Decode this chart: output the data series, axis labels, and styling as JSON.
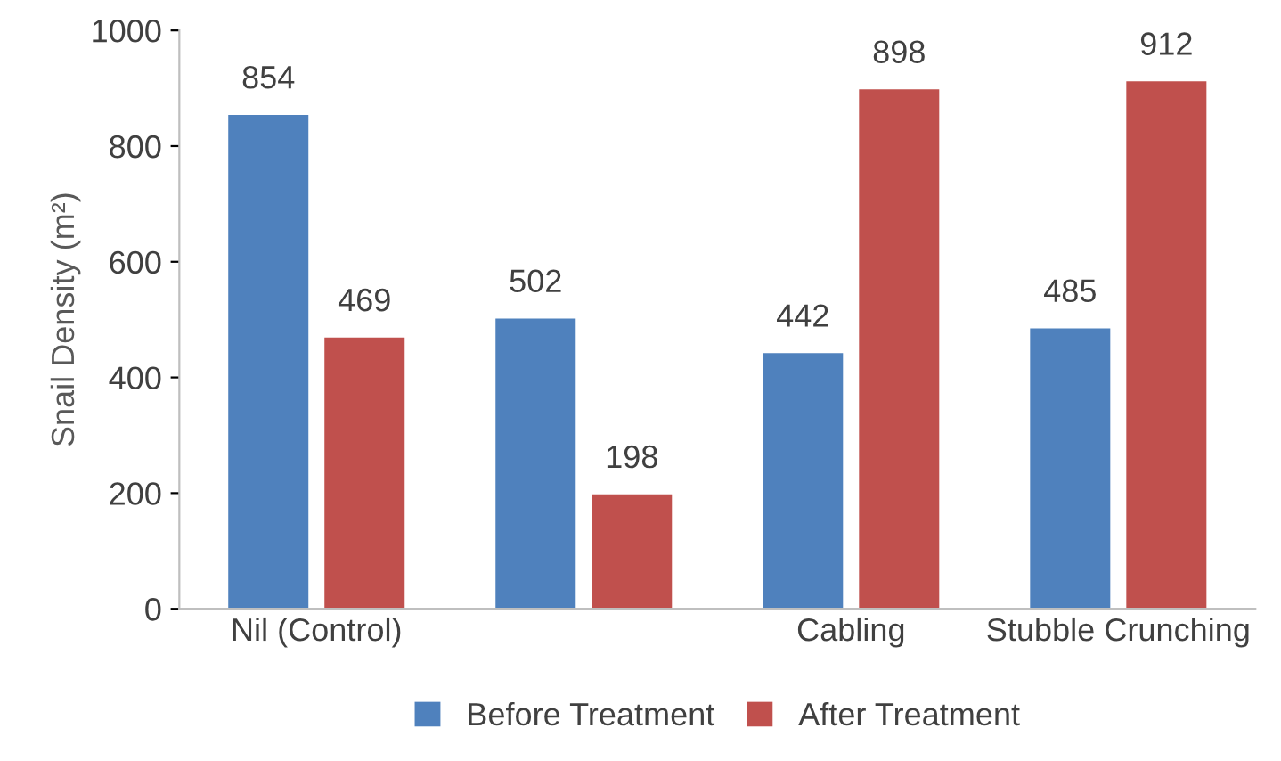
{
  "chart_data": {
    "type": "bar",
    "ylabel": "Snail Density (m²)",
    "categories": [
      "Nil (Control)",
      null,
      "Cabling",
      "Stubble Crunching"
    ],
    "series": [
      {
        "name": "Before Treatment",
        "color": "#4f81bd",
        "values": [
          854,
          502,
          442,
          485
        ]
      },
      {
        "name": "After Treatment",
        "color": "#c0504d",
        "values": [
          469,
          198,
          898,
          912
        ]
      }
    ],
    "ylim": [
      0,
      1000
    ],
    "yticks": [
      0,
      200,
      400,
      600,
      800,
      1000
    ],
    "data_labels": true,
    "grid": false,
    "legend": "bottom"
  }
}
